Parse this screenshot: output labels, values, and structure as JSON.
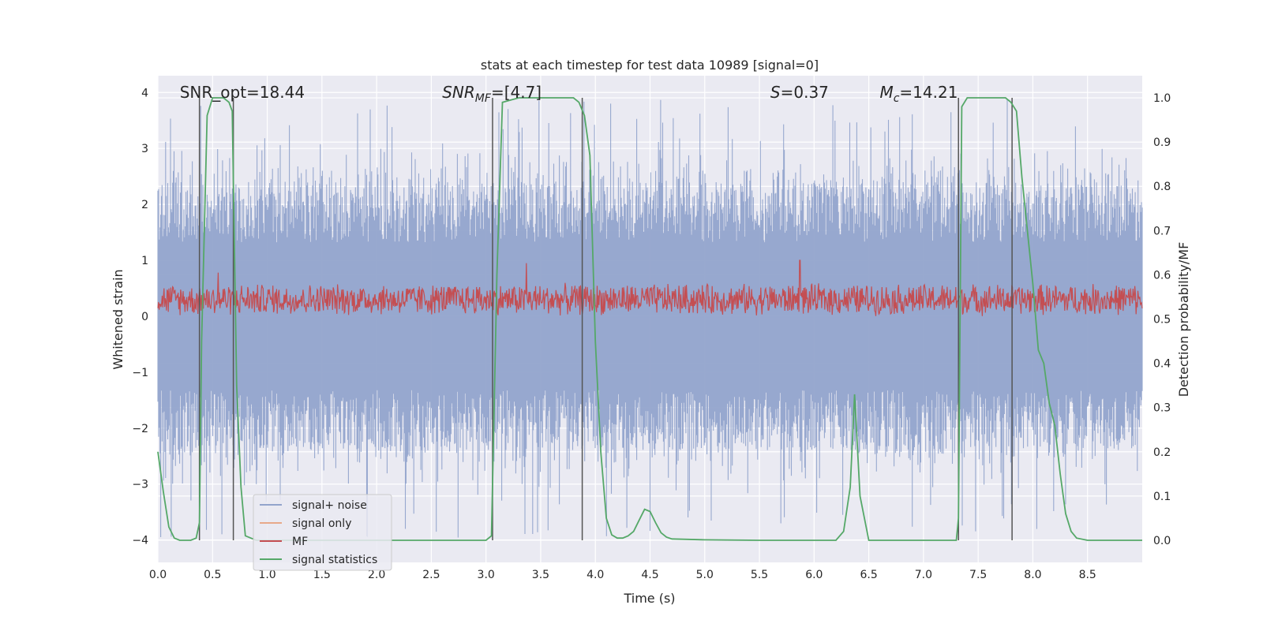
{
  "chart_data": {
    "type": "line",
    "title": "stats at each timestep for test data 10989 [signal=0]",
    "xlabel": "Time (s)",
    "ylabel": "Whitened strain",
    "y2label": "Detection probability/MF",
    "xlim": [
      0.0,
      9.0
    ],
    "ylim": [
      -4.4,
      4.3
    ],
    "y2lim": [
      -0.05,
      1.05
    ],
    "xticks": [
      "0.0",
      "0.5",
      "1.0",
      "1.5",
      "2.0",
      "2.5",
      "3.0",
      "3.5",
      "4.0",
      "4.5",
      "5.0",
      "5.5",
      "6.0",
      "6.5",
      "7.0",
      "7.5",
      "8.0",
      "8.5"
    ],
    "yticks": [
      "−4",
      "−3",
      "−2",
      "−1",
      "0",
      "1",
      "2",
      "3",
      "4"
    ],
    "y2ticks": [
      "0.0",
      "0.1",
      "0.2",
      "0.3",
      "0.4",
      "0.5",
      "0.6",
      "0.7",
      "0.8",
      "0.9",
      "1.0"
    ],
    "grid": true,
    "legend_position": "lower-left",
    "annotations": [
      {
        "text": "SNR_opt=18.44",
        "x": 0.2
      },
      {
        "text": "SNR",
        "sub": "MF",
        "suffix": "=[4.7]",
        "x": 2.6,
        "italic": true
      },
      {
        "text": "S",
        "suffix": "=0.37",
        "x": 5.6,
        "italic": true
      },
      {
        "text": "M",
        "sub": "c",
        "suffix": "=14.21",
        "x": 6.6,
        "italic": true
      }
    ],
    "vertical_lines": [
      0.38,
      0.69,
      3.06,
      3.88,
      7.32,
      7.81
    ],
    "series": [
      {
        "name": "signal+ noise",
        "color": "#92a4cc",
        "noise_envelope": {
          "upper_typical": 2.4,
          "upper_max": 3.9,
          "lower_typical": -2.4,
          "lower_min": -4.0
        }
      },
      {
        "name": "signal only",
        "color": "#e8a98a",
        "values": []
      },
      {
        "name": "MF",
        "color": "#c44e52",
        "baseline": 0.3,
        "amplitude_typical": 0.3,
        "spikes": [
          [
            0.55,
            0.78
          ],
          [
            3.37,
            0.95
          ],
          [
            5.87,
            1.0
          ]
        ]
      },
      {
        "name": "signal statistics",
        "color": "#55a868",
        "axis": "right",
        "x": [
          0.0,
          0.05,
          0.1,
          0.15,
          0.2,
          0.25,
          0.3,
          0.35,
          0.38,
          0.4,
          0.45,
          0.5,
          0.55,
          0.6,
          0.65,
          0.68,
          0.72,
          0.76,
          0.8,
          0.85,
          0.9,
          1.0,
          1.5,
          2.0,
          2.5,
          2.95,
          3.0,
          3.05,
          3.1,
          3.15,
          3.3,
          3.5,
          3.7,
          3.8,
          3.85,
          3.9,
          3.95,
          4.0,
          4.05,
          4.1,
          4.15,
          4.2,
          4.25,
          4.3,
          4.35,
          4.4,
          4.45,
          4.5,
          4.55,
          4.6,
          4.65,
          4.7,
          5.0,
          5.5,
          6.0,
          6.2,
          6.27,
          6.33,
          6.37,
          6.42,
          6.5,
          7.0,
          7.3,
          7.32,
          7.35,
          7.4,
          7.45,
          7.5,
          7.6,
          7.75,
          7.8,
          7.85,
          7.9,
          7.95,
          8.0,
          8.05,
          8.1,
          8.15,
          8.2,
          8.25,
          8.3,
          8.35,
          8.4,
          8.5,
          9.0
        ],
        "y": [
          0.2,
          0.11,
          0.03,
          0.005,
          0.0,
          0.0,
          0.0,
          0.005,
          0.04,
          0.45,
          0.96,
          1.0,
          1.0,
          1.0,
          0.99,
          0.97,
          0.35,
          0.12,
          0.01,
          0.005,
          0.0,
          0.0,
          0.0,
          0.0,
          0.0,
          0.0,
          0.0,
          0.01,
          0.6,
          0.99,
          1.0,
          1.0,
          1.0,
          1.0,
          0.99,
          0.96,
          0.87,
          0.45,
          0.2,
          0.05,
          0.012,
          0.005,
          0.005,
          0.01,
          0.02,
          0.045,
          0.07,
          0.065,
          0.04,
          0.017,
          0.007,
          0.003,
          0.001,
          0.0,
          0.0,
          0.0,
          0.02,
          0.12,
          0.33,
          0.1,
          0.0,
          0.0,
          0.0,
          0.05,
          0.98,
          1.0,
          1.0,
          1.0,
          1.0,
          1.0,
          0.99,
          0.97,
          0.82,
          0.7,
          0.58,
          0.43,
          0.4,
          0.31,
          0.26,
          0.15,
          0.06,
          0.02,
          0.005,
          0.0,
          0.0
        ]
      }
    ]
  }
}
